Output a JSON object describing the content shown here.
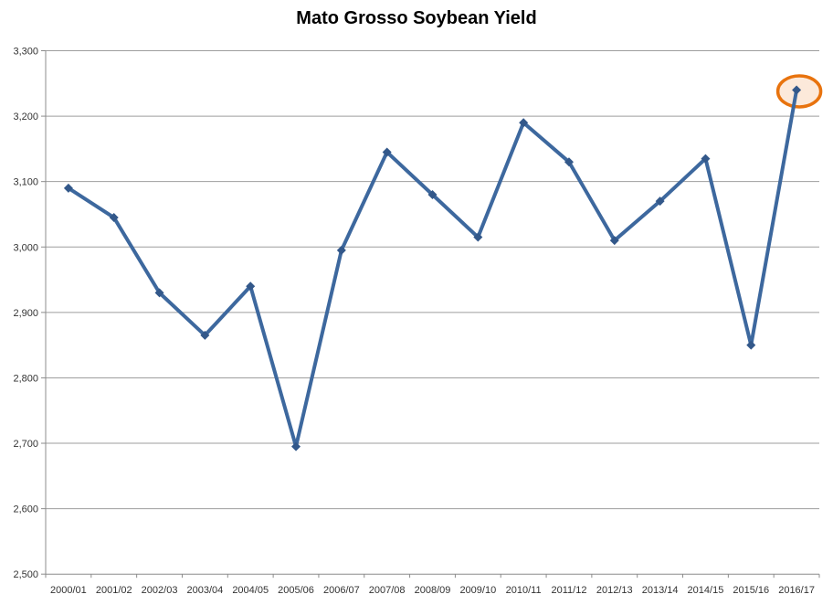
{
  "title_label": "Mato Grosso Soybean Yield",
  "colors": {
    "line": "#3D689E",
    "marker": "#33588A",
    "gridline": "#9E9E9E",
    "axis": "#8C8C8C",
    "tick_text": "#333333",
    "title_text": "#000000",
    "highlight_stroke": "#E8730E",
    "highlight_fill": "#FCE9DA"
  },
  "chart_data": {
    "type": "line",
    "title": "Mato Grosso Soybean Yield",
    "categories": [
      "2000/01",
      "2001/02",
      "2002/03",
      "2003/04",
      "2004/05",
      "2005/06",
      "2006/07",
      "2007/08",
      "2008/09",
      "2009/10",
      "2010/11",
      "2011/12",
      "2012/13",
      "2013/14",
      "2014/15",
      "2015/16",
      "2016/17"
    ],
    "series": [
      {
        "name": "Soybean yield",
        "values": [
          3090,
          3045,
          2930,
          2865,
          2940,
          2695,
          2995,
          3145,
          3080,
          3015,
          3190,
          3130,
          3010,
          3070,
          3135,
          2850,
          3240
        ]
      }
    ],
    "xlabel": "",
    "ylabel": "",
    "ylim": [
      2500,
      3300
    ],
    "ytick_step": 100,
    "ytick_labels": [
      "2,500",
      "2,600",
      "2,700",
      "2,800",
      "2,900",
      "3,000",
      "3,100",
      "3,200",
      "3,300"
    ],
    "grid": true,
    "legend": "none",
    "marker_style": "diamond",
    "annotation": {
      "shape": "ellipse",
      "category": "2016/17",
      "value": 3240
    }
  }
}
